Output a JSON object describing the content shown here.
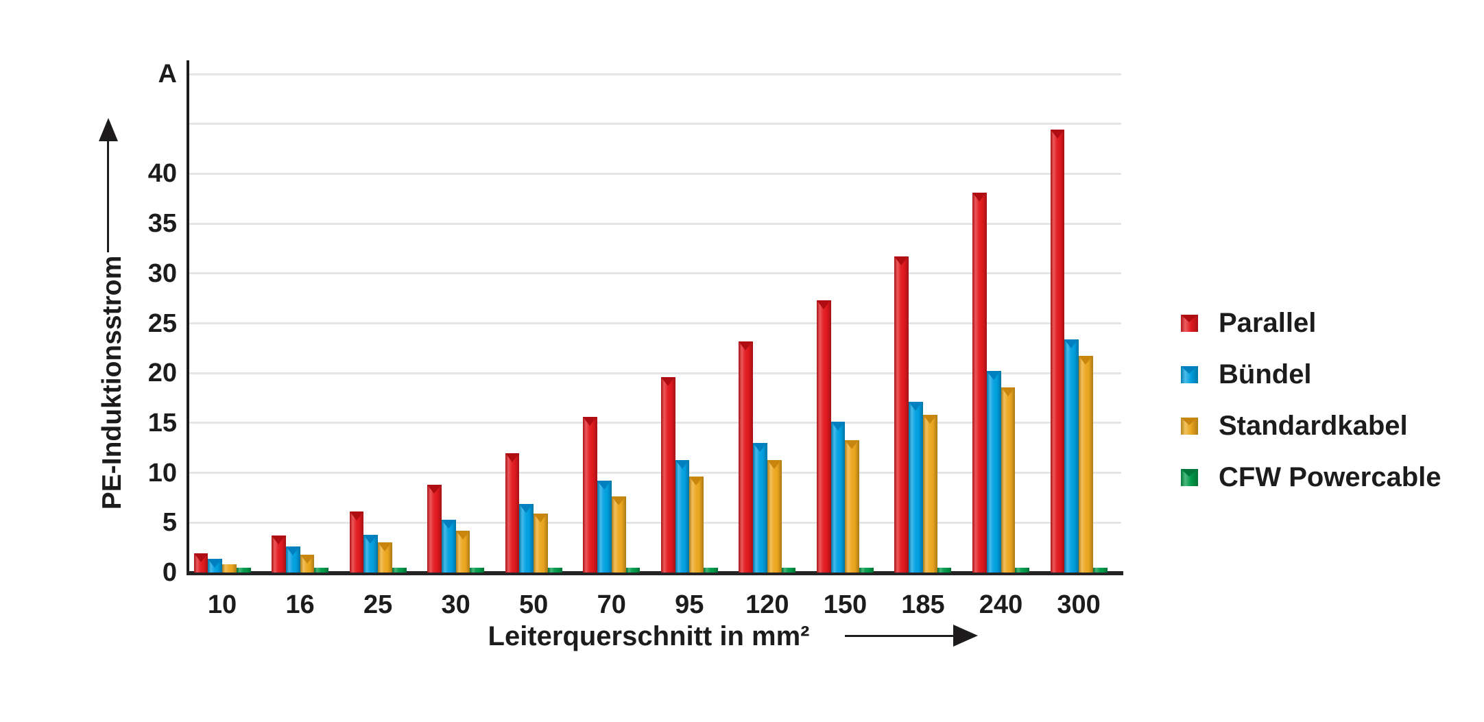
{
  "chart_data": {
    "type": "bar",
    "title": "",
    "unit": "A",
    "ylabel": "PE-Induktionsstrom",
    "xlabel": "Leiterquerschnitt in mm²",
    "categories": [
      "10",
      "16",
      "25",
      "30",
      "50",
      "70",
      "95",
      "120",
      "150",
      "185",
      "240",
      "300"
    ],
    "series": [
      {
        "name": "Parallel",
        "color": "#e2191e",
        "dark_color": "#b00d12",
        "values": [
          1.9,
          3.7,
          6.1,
          8.8,
          12.0,
          15.6,
          19.6,
          23.2,
          27.3,
          31.7,
          38.1,
          44.4
        ]
      },
      {
        "name": "Bündel",
        "color": "#00a0e1",
        "dark_color": "#0080bf",
        "values": [
          1.4,
          2.6,
          3.8,
          5.3,
          6.9,
          9.2,
          11.3,
          13.0,
          15.1,
          17.1,
          20.2,
          23.4
        ]
      },
      {
        "name": "Standardkabel",
        "color": "#eca71e",
        "dark_color": "#c8860f",
        "values": [
          0.8,
          1.8,
          3.0,
          4.2,
          5.9,
          7.6,
          9.6,
          11.3,
          13.3,
          15.8,
          18.6,
          21.7
        ]
      },
      {
        "name": "CFW Powercable",
        "color": "#009a49",
        "dark_color": "#00773a",
        "values": [
          0.5,
          0.5,
          0.5,
          0.5,
          0.5,
          0.5,
          0.5,
          0.5,
          0.5,
          0.5,
          0.5,
          0.5
        ]
      }
    ],
    "ylim": [
      0,
      50
    ],
    "ytick_step": 5,
    "ytick_labels": [
      "0",
      "5",
      "10",
      "15",
      "20",
      "25",
      "30",
      "35",
      "40"
    ],
    "grid": true,
    "legend_position": "right",
    "axis_color": "#1d1b1b",
    "gridline_color": "#e5e5e5"
  }
}
